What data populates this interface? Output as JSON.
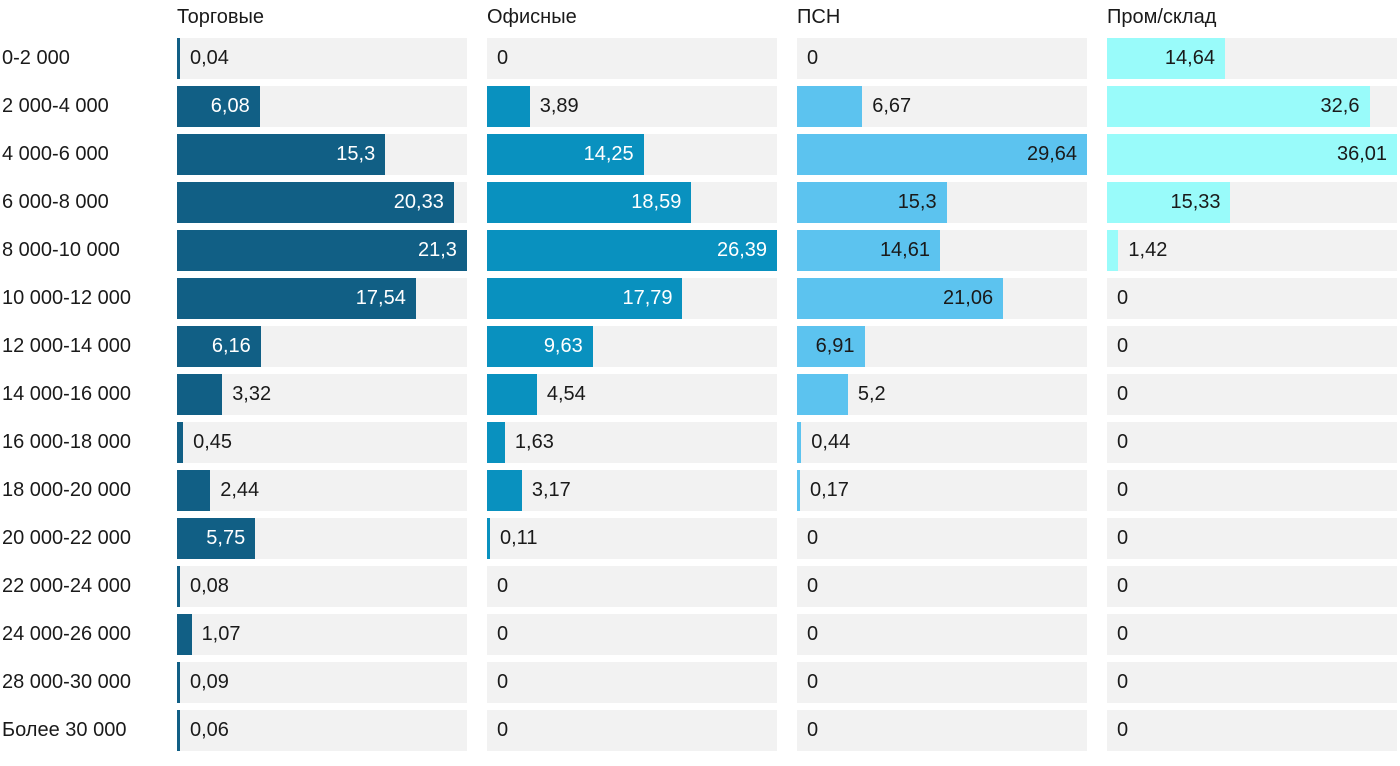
{
  "chart_data": {
    "type": "bar",
    "orientation": "horizontal",
    "layout": "small-multiples: 4 panels side by side, each panel scaled independently to its own maximum value",
    "grid": false,
    "legend_position": "column headers as panel titles",
    "track_color": "#f2f2f2",
    "text_color": "#1a1a1a",
    "categories": [
      "0-2 000",
      "2 000-4 000",
      "4 000-6 000",
      "6 000-8 000",
      "8 000-10 000",
      "10 000-12 000",
      "12 000-14 000",
      "14 000-16 000",
      "16 000-18 000",
      "18 000-20 000",
      "20 000-22 000",
      "22 000-24 000",
      "24 000-26 000",
      "28 000-30 000",
      "Более 30 000"
    ],
    "series": [
      {
        "name": "Торговые",
        "color": "#115f85",
        "inside_label_color": "#ffffff",
        "max": 21.3,
        "values": [
          0.04,
          6.08,
          15.3,
          20.33,
          21.3,
          17.54,
          6.16,
          3.32,
          0.45,
          2.44,
          5.75,
          0.08,
          1.07,
          0.09,
          0.06
        ],
        "display": [
          "0,04",
          "6,08",
          "15,3",
          "20,33",
          "21,3",
          "17,54",
          "6,16",
          "3,32",
          "0,45",
          "2,44",
          "5,75",
          "0,08",
          "1,07",
          "0,09",
          "0,06"
        ]
      },
      {
        "name": "Офисные",
        "color": "#0991bf",
        "inside_label_color": "#ffffff",
        "max": 26.39,
        "values": [
          0,
          3.89,
          14.25,
          18.59,
          26.39,
          17.79,
          9.63,
          4.54,
          1.63,
          3.17,
          0.11,
          0,
          0,
          0,
          0
        ],
        "display": [
          "0",
          "3,89",
          "14,25",
          "18,59",
          "26,39",
          "17,79",
          "9,63",
          "4,54",
          "1,63",
          "3,17",
          "0,11",
          "0",
          "0",
          "0",
          "0"
        ]
      },
      {
        "name": "ПСН",
        "color": "#5cc3ef",
        "inside_label_color": "#1a1a1a",
        "max": 29.64,
        "values": [
          0,
          6.67,
          29.64,
          15.3,
          14.61,
          21.06,
          6.91,
          5.2,
          0.44,
          0.17,
          0,
          0,
          0,
          0,
          0
        ],
        "display": [
          "0",
          "6,67",
          "29,64",
          "15,3",
          "14,61",
          "21,06",
          "6,91",
          "5,2",
          "0,44",
          "0,17",
          "0",
          "0",
          "0",
          "0",
          "0"
        ]
      },
      {
        "name": "Пром/склад",
        "color": "#99fbfa",
        "inside_label_color": "#1a1a1a",
        "max": 36.01,
        "values": [
          14.64,
          32.6,
          36.01,
          15.33,
          1.42,
          0,
          0,
          0,
          0,
          0,
          0,
          0,
          0,
          0,
          0
        ],
        "display": [
          "14,64",
          "32,6",
          "36,01",
          "15,33",
          "1,42",
          "0",
          "0",
          "0",
          "0",
          "0",
          "0",
          "0",
          "0",
          "0",
          "0"
        ]
      }
    ]
  }
}
